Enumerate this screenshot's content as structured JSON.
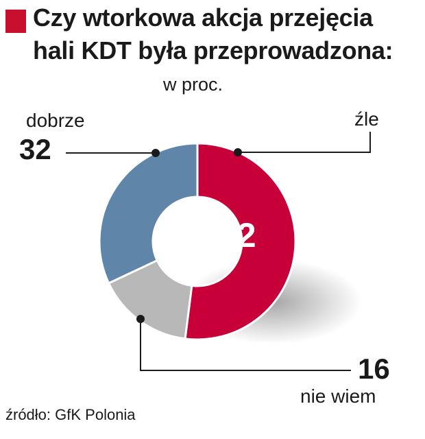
{
  "title_lines": [
    "Czy wtorkowa akcja przejęcia",
    "hali KDT była przeprowadzona:"
  ],
  "subtitle": "w proc.",
  "source": "źródło: GfK Polonia",
  "colors": {
    "accent": "#c8102e",
    "dobrze": "#5f86a9",
    "zle": "#c8003a",
    "nie_wiem": "#b8b8b8"
  },
  "chart_data": {
    "type": "pie",
    "donut": true,
    "unit": "w proc.",
    "title": "Czy wtorkowa akcja przejęcia hali KDT była przeprowadzona:",
    "slices": [
      {
        "label": "źle",
        "value": 52,
        "color": "#c8003a"
      },
      {
        "label": "nie wiem",
        "value": 16,
        "color": "#b8b8b8"
      },
      {
        "label": "dobrze",
        "value": 32,
        "color": "#5f86a9"
      }
    ]
  }
}
